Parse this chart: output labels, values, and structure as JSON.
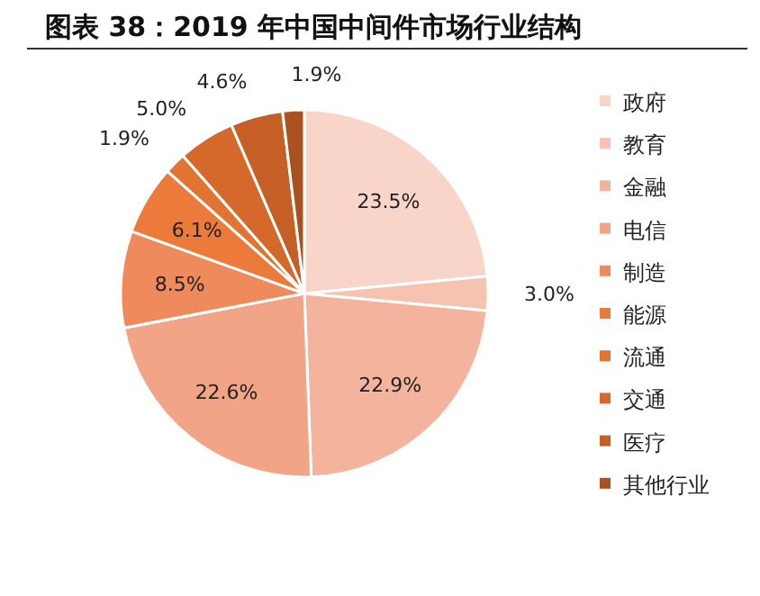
{
  "chart_data": {
    "type": "pie",
    "title": "图表 38：2019 年中国中间件市场行业结构",
    "categories": [
      "政府",
      "教育",
      "金融",
      "电信",
      "制造",
      "能源",
      "流通",
      "交通",
      "医疗",
      "其他行业"
    ],
    "values": [
      23.5,
      3.0,
      22.9,
      22.6,
      8.5,
      6.1,
      1.9,
      5.0,
      4.6,
      1.9
    ],
    "value_labels": [
      "23.5%",
      "3.0%",
      "22.9%",
      "22.6%",
      "8.5%",
      "6.1%",
      "1.9%",
      "5.0%",
      "4.6%",
      "1.9%"
    ],
    "colors": [
      "#f8d5c8",
      "#f6c3b0",
      "#f4b39c",
      "#f2a486",
      "#ef8a5c",
      "#ec7a3a",
      "#e27431",
      "#d4692b",
      "#c55f26",
      "#a9521f"
    ],
    "legend": "right"
  }
}
